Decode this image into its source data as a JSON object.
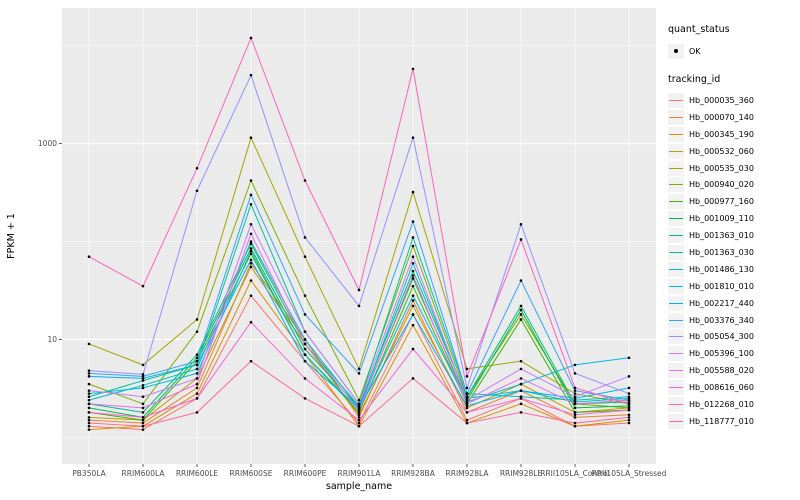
{
  "legend": {
    "quant_status_title": "quant_status",
    "ok_label": "OK",
    "tracking_title": "tracking_id"
  },
  "chart_data": {
    "type": "line",
    "title": "",
    "xlabel": "sample_name",
    "ylabel": "FPKM + 1",
    "y_scale": "log10",
    "ylim": [
      0.52,
      24000
    ],
    "y_major_breaks": [
      10,
      1000
    ],
    "y_minor_breaks": [
      1,
      100,
      10000
    ],
    "y_tick_labels": [
      "10",
      "1000"
    ],
    "grid": true,
    "legend_position": "right",
    "panel_bg": "#EBEBEB",
    "grid_color": "#FFFFFF",
    "point_color": "#000000",
    "categories": [
      "PB350LA",
      "RRIM600LA",
      "RRIM600LE",
      "RRIM600SE",
      "RRIM600PE",
      "RRIM901LA",
      "RRIM928BA",
      "RRIM928LA",
      "RRIM928LE",
      "RRII105LA_Control",
      "RRII105LA_Stressed"
    ],
    "series": [
      {
        "name": "Hb_000035_360",
        "color": "#F8766D",
        "values": [
          1.3,
          1.2,
          2.5,
          28,
          6,
          1.4,
          18,
          1.5,
          2.5,
          1.3,
          1.4
        ]
      },
      {
        "name": "Hb_000070_140",
        "color": "#EA8331",
        "values": [
          1.5,
          1.4,
          3.2,
          60,
          10,
          1.6,
          25,
          1.8,
          3,
          1.6,
          1.7
        ]
      },
      {
        "name": "Hb_000345_190",
        "color": "#D89000",
        "values": [
          1.2,
          1.3,
          2.8,
          40,
          7,
          1.3,
          14,
          1.4,
          2.2,
          1.3,
          1.5
        ]
      },
      {
        "name": "Hb_000532_060",
        "color": "#C09B00",
        "values": [
          1.6,
          1.5,
          4,
          55,
          9,
          1.7,
          22,
          2,
          3.5,
          1.8,
          2
        ]
      },
      {
        "name": "Hb_000535_030",
        "color": "#A3A500",
        "values": [
          9,
          5.5,
          16,
          1150,
          70,
          5,
          320,
          5,
          6,
          2.8,
          2.2
        ]
      },
      {
        "name": "Hb_000940_020",
        "color": "#7CAE00",
        "values": [
          3.5,
          2.2,
          12,
          420,
          28,
          2.4,
          90,
          2.6,
          18,
          2.2,
          2
        ]
      },
      {
        "name": "Hb_000977_160",
        "color": "#39B600",
        "values": [
          1.8,
          1.5,
          6,
          75,
          7,
          1.8,
          35,
          2.2,
          16,
          1.8,
          1.9
        ]
      },
      {
        "name": "Hb_001009_110",
        "color": "#00BB4E",
        "values": [
          2,
          1.6,
          6.5,
          85,
          8,
          2,
          42,
          2.4,
          20,
          2,
          2.1
        ]
      },
      {
        "name": "Hb_001363_010",
        "color": "#00BF7D",
        "values": [
          2.2,
          1.8,
          7,
          95,
          9,
          2.1,
          50,
          2.6,
          22,
          2.2,
          2.3
        ]
      },
      {
        "name": "Hb_001363_030",
        "color": "#00C1A3",
        "values": [
          2.6,
          3.8,
          5.5,
          240,
          12,
          2.2,
          110,
          2.8,
          2.6,
          2.4,
          2.6
        ]
      },
      {
        "name": "Hb_001486_130",
        "color": "#00BFC4",
        "values": [
          2.4,
          3.4,
          5,
          100,
          10,
          2,
          60,
          2.5,
          3,
          2.3,
          2.5
        ]
      },
      {
        "name": "Hb_001810_010",
        "color": "#00BAE0",
        "values": [
          2.8,
          3.2,
          4.5,
          80,
          7,
          1.9,
          28,
          2.3,
          3.5,
          5.5,
          6.5
        ]
      },
      {
        "name": "Hb_002217_440",
        "color": "#00B0F6",
        "values": [
          4.2,
          4,
          5.5,
          65,
          6,
          2,
          18,
          2.1,
          3,
          2.5,
          3.2
        ]
      },
      {
        "name": "Hb_003376_340",
        "color": "#35A2FF",
        "values": [
          4.5,
          4.2,
          6,
          300,
          18,
          4.5,
          160,
          2.8,
          40,
          3,
          2.4
        ]
      },
      {
        "name": "Hb_005054_300",
        "color": "#9590FF",
        "values": [
          4.8,
          4.4,
          330,
          5000,
          110,
          22,
          1150,
          3.2,
          150,
          4.5,
          2.8
        ]
      },
      {
        "name": "Hb_005396_100",
        "color": "#C77CFF",
        "values": [
          3,
          2.6,
          4,
          150,
          12,
          2.2,
          70,
          2.4,
          5,
          2.6,
          4.2
        ]
      },
      {
        "name": "Hb_005588_020",
        "color": "#E76BF3",
        "values": [
          2.2,
          2,
          3.5,
          120,
          9,
          1.9,
          45,
          2.2,
          4,
          2.2,
          2.4
        ]
      },
      {
        "name": "Hb_008616_060",
        "color": "#FA62DB",
        "values": [
          1.8,
          1.6,
          2.5,
          15,
          4,
          1.5,
          8,
          1.8,
          2.5,
          1.7,
          1.9
        ]
      },
      {
        "name": "Hb_012268_010",
        "color": "#FF62BC",
        "values": [
          70,
          35,
          560,
          12000,
          420,
          32,
          5800,
          4.2,
          105,
          3.2,
          2.2
        ]
      },
      {
        "name": "Hb_118777_010",
        "color": "#FF6A98",
        "values": [
          1.4,
          1.3,
          1.8,
          6,
          2.5,
          1.3,
          4,
          1.4,
          1.8,
          1.4,
          1.6
        ]
      }
    ]
  }
}
